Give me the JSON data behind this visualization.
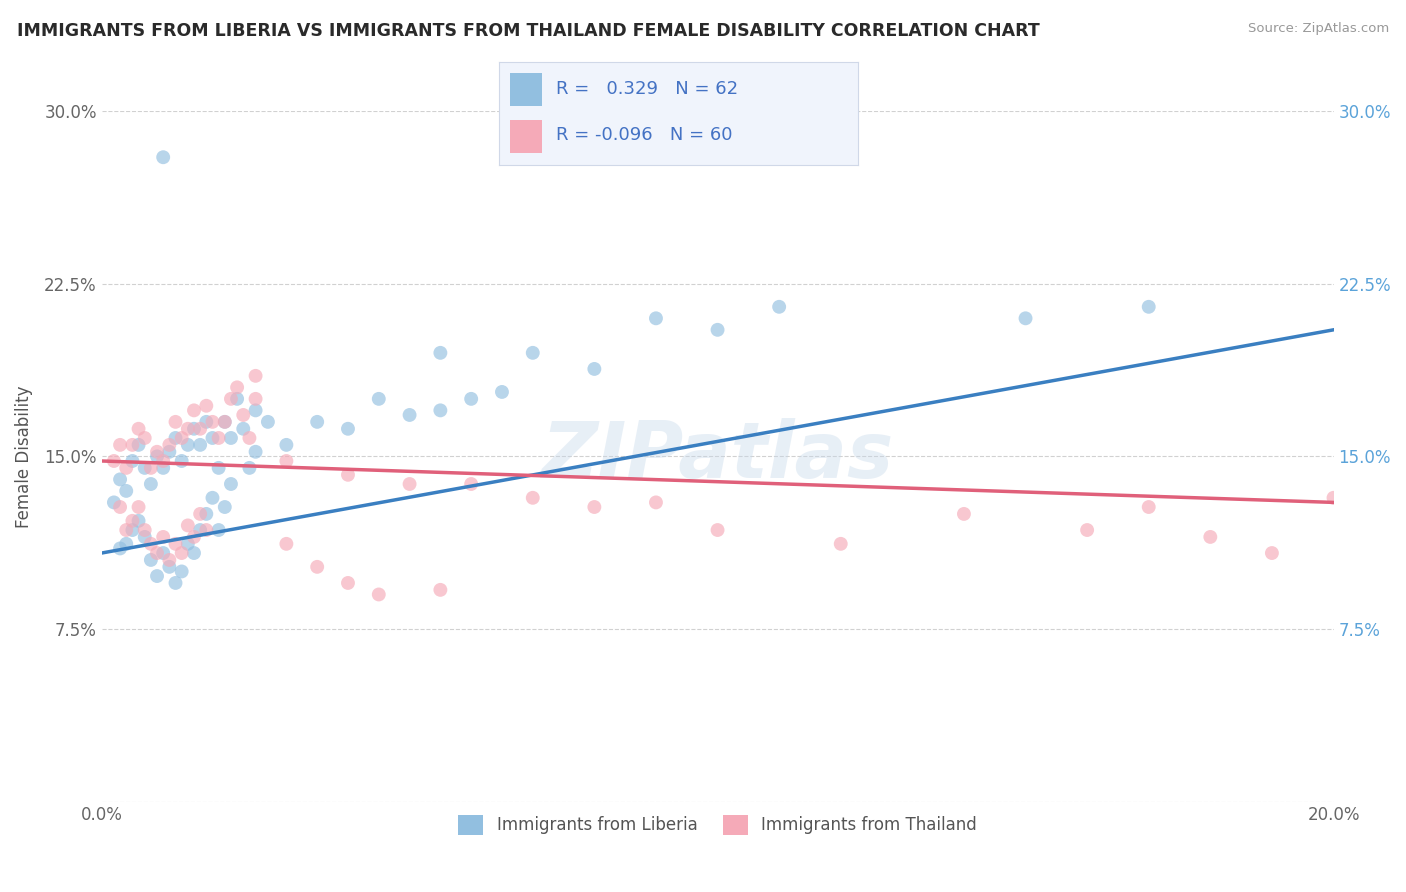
{
  "title": "IMMIGRANTS FROM LIBERIA VS IMMIGRANTS FROM THAILAND FEMALE DISABILITY CORRELATION CHART",
  "source": "Source: ZipAtlas.com",
  "ylabel": "Female Disability",
  "xlabel": "",
  "x_min": 0.0,
  "x_max": 0.2,
  "y_min": 0.0,
  "y_max": 0.3,
  "x_ticks": [
    0.0,
    0.05,
    0.1,
    0.15,
    0.2
  ],
  "y_ticks": [
    0.0,
    0.075,
    0.15,
    0.225,
    0.3
  ],
  "liberia_color": "#92bfe0",
  "thailand_color": "#f5aab8",
  "liberia_line_color": "#3a7fc1",
  "thailand_line_color": "#e0607a",
  "R_liberia": 0.329,
  "N_liberia": 62,
  "R_thailand": -0.096,
  "N_thailand": 60,
  "watermark": "ZIPatlas",
  "liberia_label": "Immigrants from Liberia",
  "thailand_label": "Immigrants from Thailand",
  "liberia_x": [
    0.002,
    0.003,
    0.004,
    0.005,
    0.006,
    0.007,
    0.008,
    0.009,
    0.01,
    0.011,
    0.012,
    0.013,
    0.014,
    0.015,
    0.016,
    0.017,
    0.018,
    0.019,
    0.02,
    0.021,
    0.022,
    0.023,
    0.024,
    0.025,
    0.003,
    0.004,
    0.005,
    0.006,
    0.007,
    0.008,
    0.009,
    0.01,
    0.011,
    0.012,
    0.013,
    0.014,
    0.015,
    0.016,
    0.017,
    0.018,
    0.019,
    0.02,
    0.021,
    0.025,
    0.027,
    0.03,
    0.035,
    0.04,
    0.045,
    0.05,
    0.055,
    0.06,
    0.065,
    0.07,
    0.08,
    0.09,
    0.1,
    0.11,
    0.15,
    0.17,
    0.01,
    0.055
  ],
  "liberia_y": [
    0.13,
    0.14,
    0.135,
    0.148,
    0.155,
    0.145,
    0.138,
    0.15,
    0.145,
    0.152,
    0.158,
    0.148,
    0.155,
    0.162,
    0.155,
    0.165,
    0.158,
    0.145,
    0.165,
    0.158,
    0.175,
    0.162,
    0.145,
    0.17,
    0.11,
    0.112,
    0.118,
    0.122,
    0.115,
    0.105,
    0.098,
    0.108,
    0.102,
    0.095,
    0.1,
    0.112,
    0.108,
    0.118,
    0.125,
    0.132,
    0.118,
    0.128,
    0.138,
    0.152,
    0.165,
    0.155,
    0.165,
    0.162,
    0.175,
    0.168,
    0.17,
    0.175,
    0.178,
    0.195,
    0.188,
    0.21,
    0.205,
    0.215,
    0.21,
    0.215,
    0.28,
    0.195
  ],
  "thailand_x": [
    0.002,
    0.003,
    0.004,
    0.005,
    0.006,
    0.007,
    0.008,
    0.009,
    0.01,
    0.011,
    0.012,
    0.013,
    0.014,
    0.015,
    0.016,
    0.017,
    0.018,
    0.019,
    0.02,
    0.021,
    0.022,
    0.023,
    0.024,
    0.025,
    0.003,
    0.004,
    0.005,
    0.006,
    0.007,
    0.008,
    0.009,
    0.01,
    0.011,
    0.012,
    0.013,
    0.014,
    0.015,
    0.016,
    0.017,
    0.03,
    0.04,
    0.05,
    0.06,
    0.07,
    0.08,
    0.09,
    0.1,
    0.12,
    0.14,
    0.16,
    0.17,
    0.18,
    0.19,
    0.2,
    0.025,
    0.03,
    0.035,
    0.04,
    0.045,
    0.055
  ],
  "thailand_y": [
    0.148,
    0.155,
    0.145,
    0.155,
    0.162,
    0.158,
    0.145,
    0.152,
    0.148,
    0.155,
    0.165,
    0.158,
    0.162,
    0.17,
    0.162,
    0.172,
    0.165,
    0.158,
    0.165,
    0.175,
    0.18,
    0.168,
    0.158,
    0.175,
    0.128,
    0.118,
    0.122,
    0.128,
    0.118,
    0.112,
    0.108,
    0.115,
    0.105,
    0.112,
    0.108,
    0.12,
    0.115,
    0.125,
    0.118,
    0.148,
    0.142,
    0.138,
    0.138,
    0.132,
    0.128,
    0.13,
    0.118,
    0.112,
    0.125,
    0.118,
    0.128,
    0.115,
    0.108,
    0.132,
    0.185,
    0.112,
    0.102,
    0.095,
    0.09,
    0.092
  ]
}
